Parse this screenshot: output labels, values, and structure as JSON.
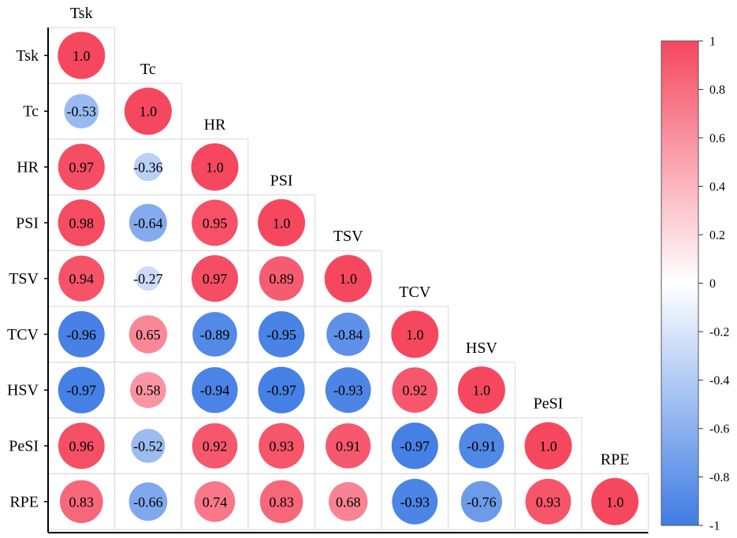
{
  "chart_data": {
    "type": "heatmap",
    "variables": [
      "Tsk",
      "Tc",
      "HR",
      "PSI",
      "TSV",
      "TCV",
      "HSV",
      "PeSI",
      "RPE"
    ],
    "matrix": [
      [
        1.0
      ],
      [
        -0.53,
        1.0
      ],
      [
        0.97,
        -0.36,
        1.0
      ],
      [
        0.98,
        -0.64,
        0.95,
        1.0
      ],
      [
        0.94,
        -0.27,
        0.97,
        0.89,
        1.0
      ],
      [
        -0.96,
        0.65,
        -0.89,
        -0.95,
        -0.84,
        1.0
      ],
      [
        -0.97,
        0.58,
        -0.94,
        -0.97,
        -0.93,
        0.92,
        1.0
      ],
      [
        0.96,
        -0.52,
        0.92,
        0.93,
        0.91,
        -0.97,
        -0.91,
        1.0
      ],
      [
        0.83,
        -0.66,
        0.74,
        0.83,
        0.68,
        -0.93,
        -0.76,
        0.93,
        1.0
      ]
    ],
    "value_labels": [
      [
        "1.0"
      ],
      [
        "-0.53",
        "1.0"
      ],
      [
        "0.97",
        "-0.36",
        "1.0"
      ],
      [
        "0.98",
        "-0.64",
        "0.95",
        "1.0"
      ],
      [
        "0.94",
        "-0.27",
        "0.97",
        "0.89",
        "1.0"
      ],
      [
        "-0.96",
        "0.65",
        "-0.89",
        "-0.95",
        "-0.84",
        "1.0"
      ],
      [
        "-0.97",
        "0.58",
        "-0.94",
        "-0.97",
        "-0.93",
        "0.92",
        "1.0"
      ],
      [
        "0.96",
        "-0.52",
        "0.92",
        "0.93",
        "0.91",
        "-0.97",
        "-0.91",
        "1.0"
      ],
      [
        "0.83",
        "-0.66",
        "0.74",
        "0.83",
        "0.68",
        "-0.93",
        "-0.76",
        "0.93",
        "1.0"
      ]
    ],
    "colorbar": {
      "range": [
        -1,
        1
      ],
      "ticks": [
        1,
        0.8,
        0.6,
        0.4,
        0.2,
        0,
        -0.2,
        -0.4,
        -0.6,
        -0.8,
        -1
      ],
      "tick_labels": [
        "1",
        "0.8",
        "0.6",
        "0.4",
        "0.2",
        "0",
        "-0.2",
        "-0.4",
        "-0.6",
        "-0.8",
        "-1"
      ],
      "colors": {
        "positive": "#f5485f",
        "zero": "#ffffff",
        "negative": "#3f7ce4"
      }
    },
    "title": "",
    "xlabel": "",
    "ylabel": ""
  }
}
